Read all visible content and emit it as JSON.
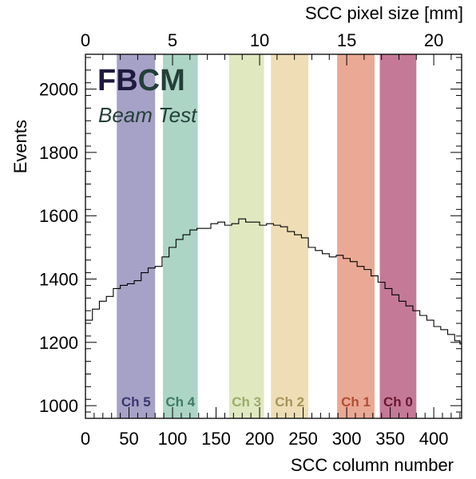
{
  "chart_data": {
    "type": "line",
    "style": "step-histogram",
    "title": "",
    "experiment_label": "FBCM",
    "experiment_colors": [
      "#1e1a40",
      "#1e1a40",
      "#233f38",
      "#233f38"
    ],
    "sublabel": "Beam Test",
    "sublabel_color": "#233f38",
    "xlabel": "SCC column number",
    "ylabel": "Events",
    "top_xlabel": "SCC pixel size [mm]",
    "xlim": [
      0,
      432
    ],
    "ylim": [
      960,
      2110
    ],
    "top_xlim": [
      0,
      21.6
    ],
    "x_ticks": [
      0,
      50,
      100,
      150,
      200,
      250,
      300,
      350,
      400
    ],
    "y_ticks": [
      1000,
      1200,
      1400,
      1600,
      1800,
      2000
    ],
    "top_x_ticks": [
      0,
      5,
      10,
      15,
      20
    ],
    "grid": false,
    "channels": [
      {
        "label": "Ch 5",
        "x_start": 36,
        "x_end": 80,
        "fill": "#a6a1c6",
        "text_color": "#3b3670"
      },
      {
        "label": "Ch 4",
        "x_start": 89,
        "x_end": 129,
        "fill": "#acd5c6",
        "text_color": "#3f7a66"
      },
      {
        "label": "Ch 3",
        "x_start": 165,
        "x_end": 205,
        "fill": "#e0e8c0",
        "text_color": "#9bab6a"
      },
      {
        "label": "Ch 2",
        "x_start": 213,
        "x_end": 256,
        "fill": "#efdeb5",
        "text_color": "#a7935c"
      },
      {
        "label": "Ch 1",
        "x_start": 289,
        "x_end": 332,
        "fill": "#eaa994",
        "text_color": "#b24e35"
      },
      {
        "label": "Ch 0",
        "x_start": 338,
        "x_end": 380,
        "fill": "#c47a96",
        "text_color": "#6a1632"
      }
    ],
    "series": [
      {
        "color": "#000000",
        "x": [
          0,
          8,
          16,
          24,
          32,
          40,
          48,
          56,
          64,
          72,
          80,
          88,
          96,
          104,
          112,
          120,
          128,
          136,
          144,
          152,
          160,
          168,
          176,
          184,
          192,
          200,
          208,
          216,
          224,
          232,
          240,
          248,
          256,
          264,
          272,
          280,
          288,
          296,
          304,
          312,
          320,
          328,
          336,
          344,
          352,
          360,
          368,
          376,
          384,
          392,
          400,
          408,
          416,
          424,
          430
        ],
        "values": [
          1270,
          1305,
          1330,
          1345,
          1370,
          1380,
          1385,
          1395,
          1420,
          1435,
          1440,
          1470,
          1500,
          1525,
          1540,
          1555,
          1560,
          1560,
          1575,
          1580,
          1570,
          1575,
          1590,
          1580,
          1580,
          1570,
          1575,
          1570,
          1565,
          1550,
          1540,
          1530,
          1500,
          1490,
          1480,
          1470,
          1475,
          1465,
          1455,
          1440,
          1430,
          1410,
          1390,
          1370,
          1350,
          1330,
          1315,
          1300,
          1285,
          1270,
          1250,
          1240,
          1225,
          1205,
          1195
        ]
      }
    ]
  }
}
